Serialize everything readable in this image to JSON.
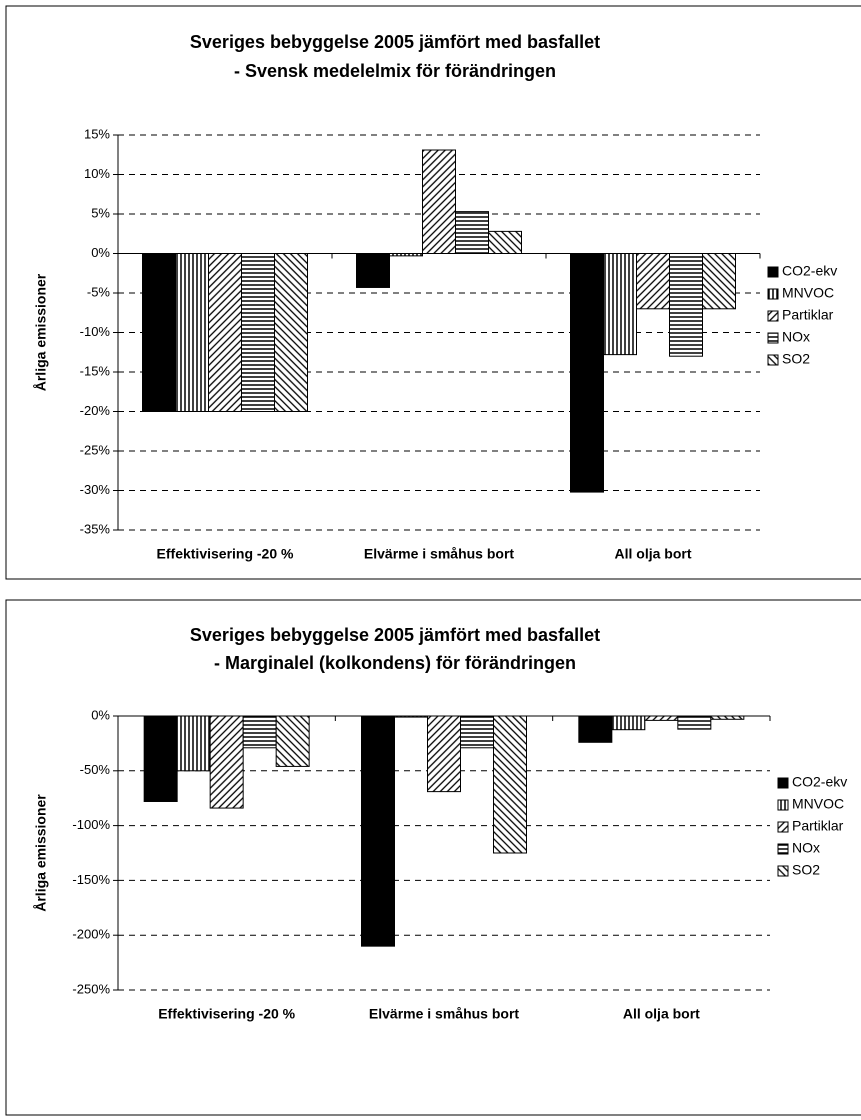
{
  "chart_data": [
    {
      "type": "bar",
      "title": "Sveriges bebyggelse 2005 jämfört med basfallet",
      "subtitle": "- Svensk medelelmix för förändringen",
      "y_label": "Årliga emissioner",
      "categories": [
        "Effektivisering -20 %",
        "Elvärme i småhus bort",
        "All olja bort"
      ],
      "series": [
        {
          "name": "CO2-ekv",
          "color": "#000000",
          "pattern": "solid",
          "values": [
            -20,
            -4.3,
            -30.2
          ]
        },
        {
          "name": "MNVOC",
          "color": "#000000",
          "pattern": "vertical",
          "values": [
            -20,
            -0.3,
            -12.8
          ]
        },
        {
          "name": "Partiklar",
          "color": "#000000",
          "pattern": "diag-down",
          "values": [
            -20,
            13.1,
            -7
          ]
        },
        {
          "name": "NOx",
          "color": "#000000",
          "pattern": "horizontal",
          "values": [
            -20,
            5.3,
            -13
          ]
        },
        {
          "name": "SO2",
          "color": "#000000",
          "pattern": "diag-up",
          "values": [
            -20,
            2.8,
            -7
          ]
        }
      ],
      "ylim": [
        -35,
        15
      ],
      "yticks": [
        {
          "value": -35,
          "label": "-35%"
        },
        {
          "value": -30,
          "label": "-30%"
        },
        {
          "value": -25,
          "label": "-25%"
        },
        {
          "value": -20,
          "label": "-20%"
        },
        {
          "value": -15,
          "label": "-15%"
        },
        {
          "value": -10,
          "label": "-10%"
        },
        {
          "value": -5,
          "label": "-5%"
        },
        {
          "value": 0,
          "label": "0%"
        },
        {
          "value": 5,
          "label": "5%"
        },
        {
          "value": 10,
          "label": "10%"
        },
        {
          "value": 15,
          "label": "15%"
        }
      ],
      "grid": true,
      "legend": "right"
    },
    {
      "type": "bar",
      "title": "Sveriges bebyggelse 2005 jämfört med basfallet",
      "subtitle": "- Marginalel (kolkondens) för förändringen",
      "y_label": "Årliga emissioner",
      "categories": [
        "Effektivisering -20 %",
        "Elvärme i småhus bort",
        "All olja bort"
      ],
      "series": [
        {
          "name": "CO2-ekv",
          "color": "#000000",
          "pattern": "solid",
          "values": [
            -78,
            -210,
            -24
          ]
        },
        {
          "name": "MNVOC",
          "color": "#000000",
          "pattern": "vertical",
          "values": [
            -50,
            -1,
            -12.5
          ]
        },
        {
          "name": "Partiklar",
          "color": "#000000",
          "pattern": "diag-down",
          "values": [
            -84,
            -69,
            -4
          ]
        },
        {
          "name": "NOx",
          "color": "#000000",
          "pattern": "horizontal",
          "values": [
            -29,
            -29,
            -12
          ]
        },
        {
          "name": "SO2",
          "color": "#000000",
          "pattern": "diag-up",
          "values": [
            -46,
            -125,
            -3
          ]
        }
      ],
      "ylim": [
        -250,
        0
      ],
      "yticks": [
        {
          "value": -250,
          "label": "-250%"
        },
        {
          "value": -200,
          "label": "-200%"
        },
        {
          "value": -150,
          "label": "-150%"
        },
        {
          "value": -100,
          "label": "-100%"
        },
        {
          "value": -50,
          "label": "-50%"
        },
        {
          "value": 0,
          "label": "0%"
        }
      ],
      "grid": true,
      "legend": "right"
    }
  ]
}
